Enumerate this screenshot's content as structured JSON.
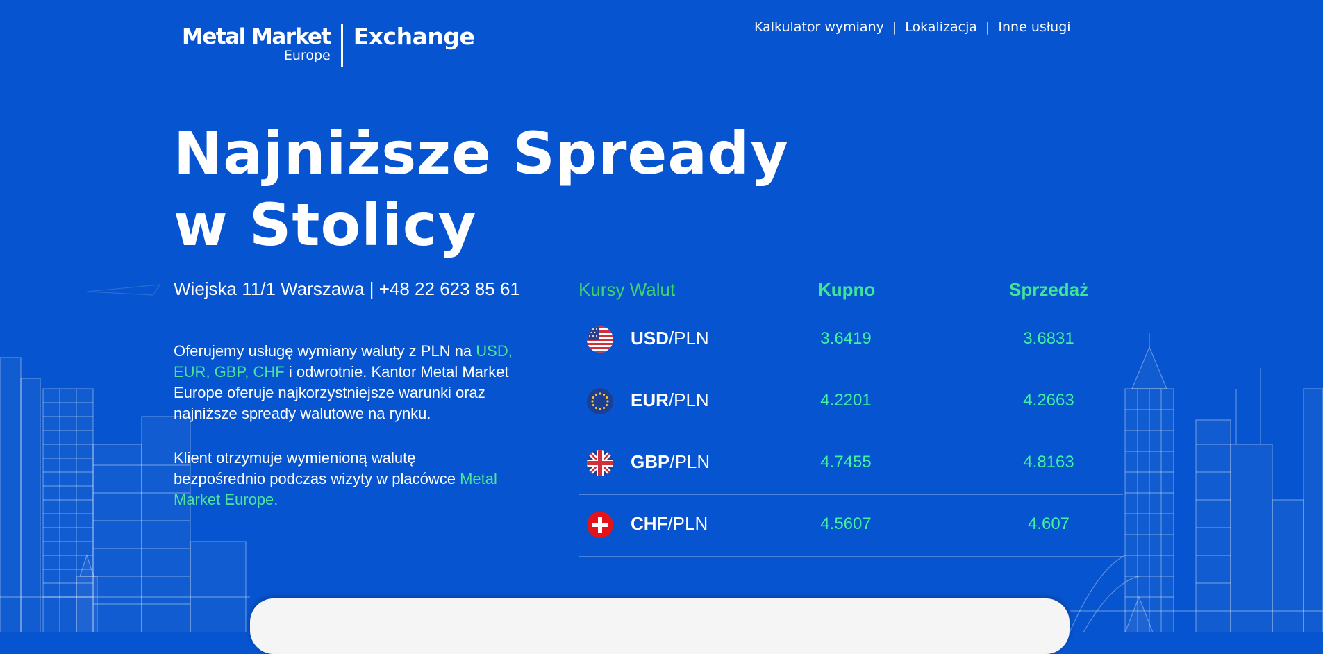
{
  "brand": {
    "name": "Metal Market",
    "sub": "Europe",
    "product": "Exchange"
  },
  "nav": {
    "items": [
      {
        "label": "Kalkulator wymiany"
      },
      {
        "label": "Lokalizacja"
      },
      {
        "label": "Inne usługi"
      }
    ],
    "separator": "|"
  },
  "hero": {
    "title_line1": "Najniższe Spready",
    "title_line2": "w Stolicy",
    "address": "Wiejska 11/1 Warszawa | +48 22 623 85 61",
    "desc1_pre": "Oferujemy usługę wymiany waluty  z PLN na ",
    "desc1_hl": "USD, EUR, GBP, CHF",
    "desc1_post": " i odwrotnie. Kantor Metal Market Europe oferuje najkorzystniejsze warunki oraz najniższe spready walutowe na rynku.",
    "desc2_pre": "Klient otrzymuje wymienioną walutę bezpośrednio podczas wizyty w placówce ",
    "desc2_hl": "Metal Market Europe."
  },
  "rates": {
    "header": {
      "title": "Kursy Walut",
      "buy": "Kupno",
      "sell": "Sprzedaż"
    },
    "rows": [
      {
        "base": "USD",
        "quote": "/PLN",
        "buy": "3.6419",
        "sell": "3.6831",
        "flag": "us-flag-icon"
      },
      {
        "base": "EUR",
        "quote": "/PLN",
        "buy": "4.2201",
        "sell": "4.2663",
        "flag": "eu-flag-icon"
      },
      {
        "base": "GBP",
        "quote": "/PLN",
        "buy": "4.7455",
        "sell": "4.8163",
        "flag": "uk-flag-icon"
      },
      {
        "base": "CHF",
        "quote": "/PLN",
        "buy": "4.5607",
        "sell": "4.607",
        "flag": "ch-flag-icon"
      }
    ]
  },
  "colors": {
    "background": "#0654cf",
    "accent_green": "#41f0a0",
    "text": "#ffffff",
    "card": "#f5f5f5"
  }
}
